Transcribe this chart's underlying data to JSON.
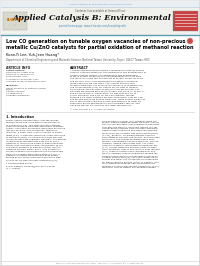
{
  "journal_name": "Applied Catalysis B: Environmental",
  "journal_url_text": "journal homepage: www.elsevier.com/locate/apcatb",
  "article_doi_text": "Applied Catalysis B: Environmental XXX (2019) XXX-XXX",
  "title": "Low CO generation on tunable oxygen vacancies of non-precious\nmetallic Cu/ZnO catalysts for partial oxidation of methanol reaction",
  "authors": "Kuan-Yi Lee, Yuh-Jeen Huang*",
  "affiliation": "Department of Chemical Engineering and Materials Science, National Taiwan University, Taipei, 10617 Taiwan, ROC",
  "article_info_label": "ARTICLE INFO",
  "abstract_label": "ABSTRACT",
  "introduction_label": "1. Introduction",
  "header_bg_color": "#f0f0ec",
  "journal_color": "#222222",
  "title_color": "#000000",
  "body_bg_color": "#ffffff",
  "border_color": "#cccccc",
  "header_line_color": "#5b9db5",
  "page_bg": "#e8e8e8",
  "content_bg": "#ffffff",
  "text_color": "#333333",
  "light_text": "#777777",
  "link_color": "#4488bb",
  "thumb_color": "#c94040",
  "logo_bg": "#d8d8cc",
  "copyright_color": "#555555"
}
